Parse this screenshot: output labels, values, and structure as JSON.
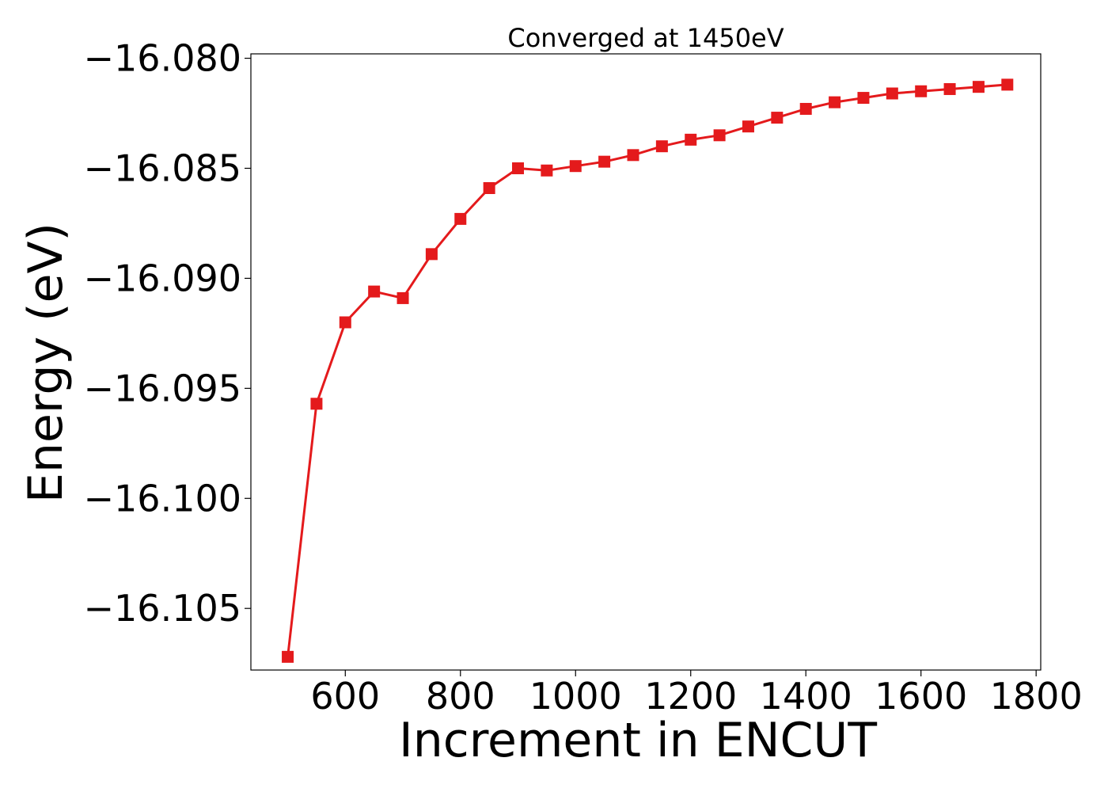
{
  "chart_data": {
    "type": "line",
    "title": "Converged at 1450eV",
    "xlabel": "Increment in ENCUT",
    "ylabel": "Energy (eV)",
    "xlim": [
      436,
      1808
    ],
    "ylim": [
      -16.1078,
      -16.0798
    ],
    "xticks": [
      600,
      800,
      1000,
      1200,
      1400,
      1600,
      1800
    ],
    "xtick_labels": [
      "600",
      "800",
      "1000",
      "1200",
      "1400",
      "1600",
      "1800"
    ],
    "yticks": [
      -16.105,
      -16.1,
      -16.095,
      -16.09,
      -16.085,
      -16.08
    ],
    "ytick_labels": [
      "−16.105",
      "−16.100",
      "−16.095",
      "−16.090",
      "−16.085",
      "−16.080"
    ],
    "grid": false,
    "legend": "none",
    "series": [
      {
        "color": "#e41a1c",
        "marker": "square",
        "x": [
          500,
          550,
          600,
          650,
          700,
          750,
          800,
          850,
          900,
          950,
          1000,
          1050,
          1100,
          1150,
          1200,
          1250,
          1300,
          1350,
          1400,
          1450,
          1500,
          1550,
          1600,
          1650,
          1700,
          1750
        ],
        "y": [
          -16.1072,
          -16.0957,
          -16.092,
          -16.0906,
          -16.0909,
          -16.0889,
          -16.0873,
          -16.0859,
          -16.085,
          -16.0851,
          -16.0849,
          -16.0847,
          -16.0844,
          -16.084,
          -16.0837,
          -16.0835,
          -16.0831,
          -16.0827,
          -16.0823,
          -16.082,
          -16.0818,
          -16.0816,
          -16.0815,
          -16.0814,
          -16.0813,
          -16.0812
        ]
      }
    ]
  }
}
